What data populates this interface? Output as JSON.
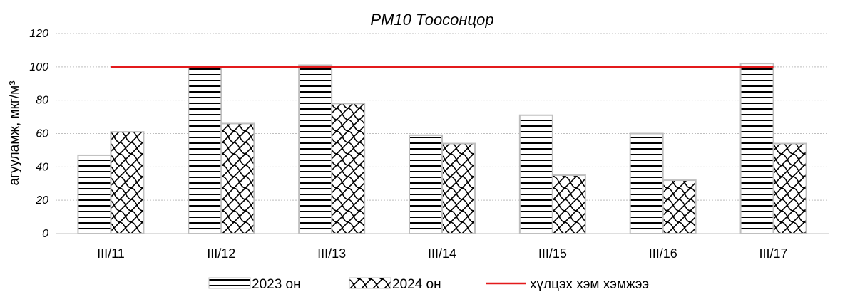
{
  "chart_data": {
    "type": "bar",
    "title": "PM10 Тоосонцор",
    "ylabel": "агууламж, мкг/м³",
    "xlabel": "",
    "ylim": [
      0,
      120
    ],
    "yticks": [
      0,
      20,
      40,
      60,
      80,
      100,
      120
    ],
    "grid": true,
    "legend_position": "bottom",
    "categories": [
      "III/11",
      "III/12",
      "III/13",
      "III/14",
      "III/15",
      "III/16",
      "III/17"
    ],
    "series": [
      {
        "name": "2023 он",
        "pattern": "horizontal-lines",
        "values": [
          47,
          100,
          101,
          59,
          71,
          60,
          102
        ]
      },
      {
        "name": "2024 он",
        "pattern": "wave-hatch",
        "values": [
          61,
          66,
          78,
          54,
          35,
          32,
          54
        ]
      }
    ],
    "reference_line": {
      "name": "хүлцэх хэм хэмжээ",
      "value": 100,
      "color": "#e31a1c"
    }
  }
}
